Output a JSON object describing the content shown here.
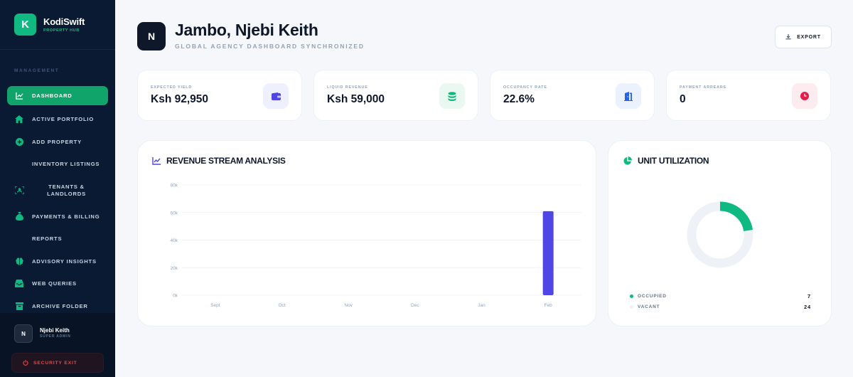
{
  "brand": {
    "logo": "K",
    "name": "KodiSwift",
    "sub": "PROPERTY HUB"
  },
  "sidebar": {
    "section_label": "MANAGEMENT",
    "items": [
      {
        "label": "Dashboard",
        "icon": "chart-line-icon",
        "active": true
      },
      {
        "label": "Active Portfolio",
        "icon": "house-icon"
      },
      {
        "label": "Add Property",
        "icon": "plus-circle-icon"
      },
      {
        "label": "Inventory Listings",
        "icon": ""
      },
      {
        "label": "Tenants & Landlords",
        "icon": "scan-users-icon"
      },
      {
        "label": "Payments & Billing",
        "icon": "money-bag-icon"
      },
      {
        "label": "Reports",
        "icon": ""
      },
      {
        "label": "Advisory Insights",
        "icon": "brain-icon"
      },
      {
        "label": "Web Queries",
        "icon": "inbox-icon"
      },
      {
        "label": "Archive Folder",
        "icon": "archive-icon"
      }
    ],
    "user": {
      "initial": "N",
      "name": "Njebi Keith",
      "role": "SUPER ADMIN"
    },
    "exit_label": "SECURITY EXIT"
  },
  "header": {
    "initial": "N",
    "title": "Jambo, Njebi Keith",
    "subtitle": "GLOBAL AGENCY DASHBOARD SYNCHRONIZED",
    "export_label": "EXPORT"
  },
  "stats": [
    {
      "label": "EXPECTED YIELD",
      "value": "Ksh 92,950",
      "icon": "wallet-icon",
      "color": "#4f46e5",
      "bg": "#eef0fd"
    },
    {
      "label": "LIQUID REVENUE",
      "value": "Ksh 59,000",
      "icon": "coins-icon",
      "color": "#10b981",
      "bg": "#e9f9f2"
    },
    {
      "label": "OCCUPANCY RATE",
      "value": "22.6%",
      "icon": "door-icon",
      "color": "#2563eb",
      "bg": "#ebf2fe"
    },
    {
      "label": "PAYMENT ARREARS",
      "value": "0",
      "icon": "clock-icon",
      "color": "#e11d48",
      "bg": "#fdecef"
    }
  ],
  "revenue_panel": {
    "title": "REVENUE STREAM ANALYSIS"
  },
  "utilization_panel": {
    "title": "UNIT UTILIZATION",
    "legend": [
      {
        "label": "OCCUPIED",
        "value": "7",
        "color": "#10b981"
      },
      {
        "label": "VACANT",
        "value": "24",
        "color": "#eef1f6"
      }
    ]
  },
  "chart_data": [
    {
      "type": "bar",
      "categories": [
        "Sept",
        "Oct",
        "Nov",
        "Dec",
        "Jan",
        "Feb"
      ],
      "values": [
        0,
        0,
        0,
        0,
        0,
        61000
      ],
      "ylim": [
        0,
        80000
      ],
      "yticks": [
        0,
        20000,
        40000,
        60000,
        80000
      ],
      "ytick_labels": [
        "0k",
        "20k",
        "40k",
        "60k",
        "80k"
      ],
      "color": "#4f46e5",
      "grid": true
    },
    {
      "type": "pie",
      "labels": [
        "OCCUPIED",
        "VACANT"
      ],
      "values": [
        7,
        24
      ],
      "colors": [
        "#10b981",
        "#eef1f6"
      ]
    }
  ]
}
